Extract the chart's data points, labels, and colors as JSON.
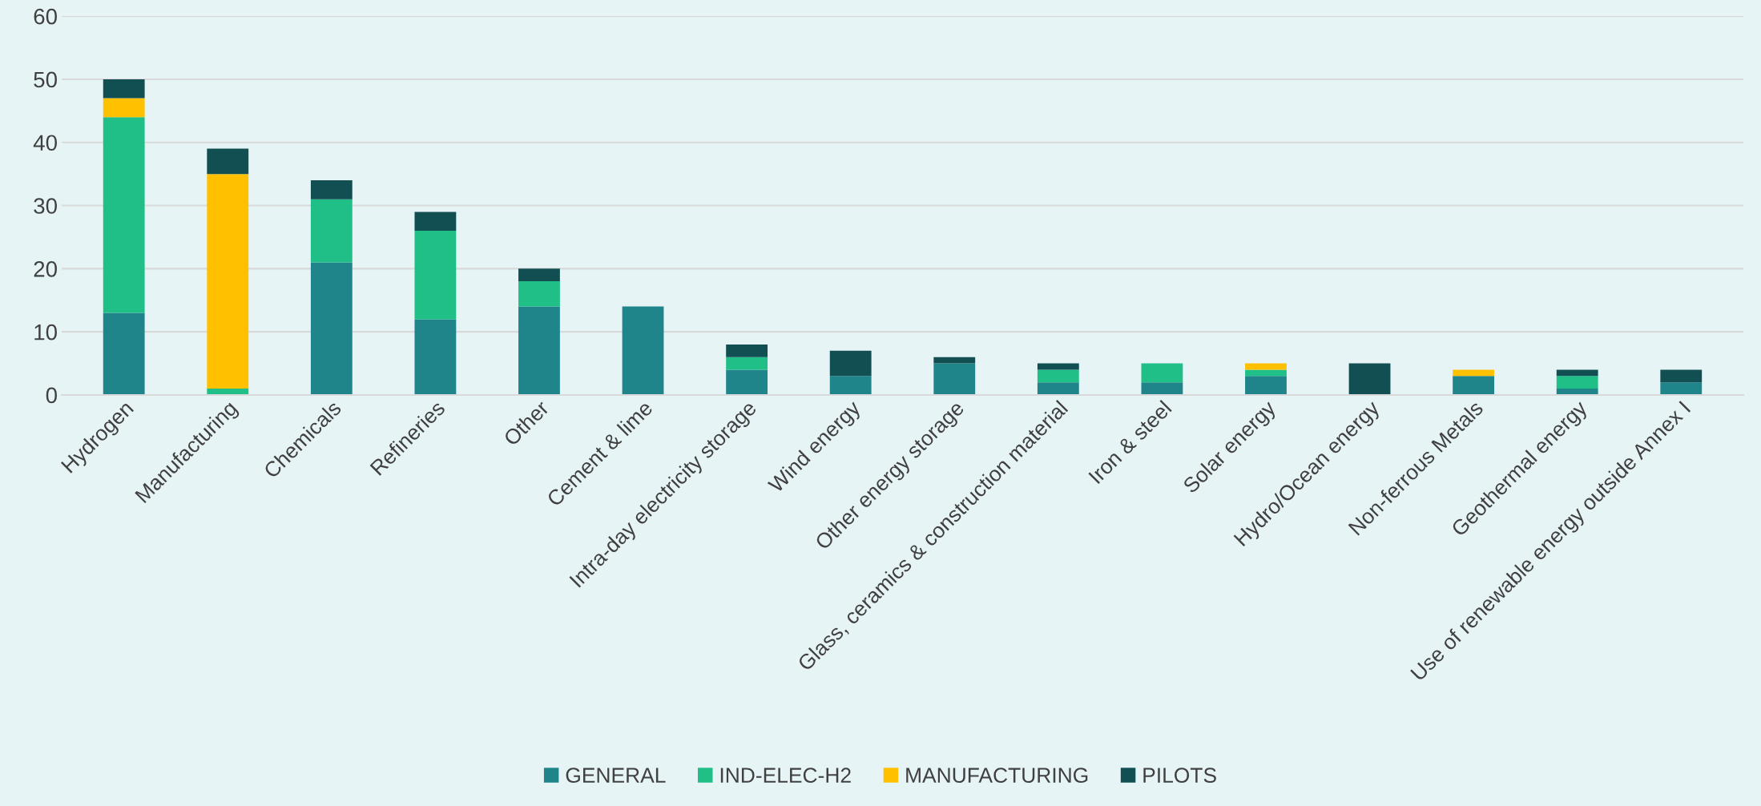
{
  "chart_data": {
    "type": "bar",
    "stacked": true,
    "categories": [
      "Hydrogen",
      "Manufacturing",
      "Chemicals",
      "Refineries",
      "Other",
      "Cement & lime",
      "Intra-day electricity storage",
      "Wind energy",
      "Other energy storage",
      "Glass, ceramics & construction material",
      "Iron & steel",
      "Solar energy",
      "Hydro/Ocean energy",
      "Non-ferrous Metals",
      "Geothermal energy",
      "Use of renewable energy outside Annex I"
    ],
    "series": [
      {
        "name": "GENERAL",
        "color": "#1f858a",
        "values": [
          13,
          0,
          21,
          12,
          14,
          14,
          4,
          3,
          5,
          2,
          2,
          3,
          0,
          3,
          1,
          2
        ]
      },
      {
        "name": "IND-ELEC-H2",
        "color": "#1fbf87",
        "values": [
          31,
          1,
          10,
          14,
          4,
          0,
          2,
          0,
          0,
          2,
          3,
          1,
          0,
          0,
          2,
          0
        ]
      },
      {
        "name": "MANUFACTURING",
        "color": "#ffc000",
        "values": [
          3,
          34,
          0,
          0,
          0,
          0,
          0,
          0,
          0,
          0,
          0,
          1,
          0,
          1,
          0,
          0
        ]
      },
      {
        "name": "PILOTS",
        "color": "#124f53",
        "values": [
          3,
          4,
          3,
          3,
          2,
          0,
          2,
          4,
          1,
          1,
          0,
          0,
          5,
          0,
          1,
          2
        ]
      }
    ],
    "ylim": [
      0,
      60
    ],
    "yticks": [
      0,
      10,
      20,
      30,
      40,
      50,
      60
    ],
    "grid": "y",
    "legend": "bottom"
  }
}
